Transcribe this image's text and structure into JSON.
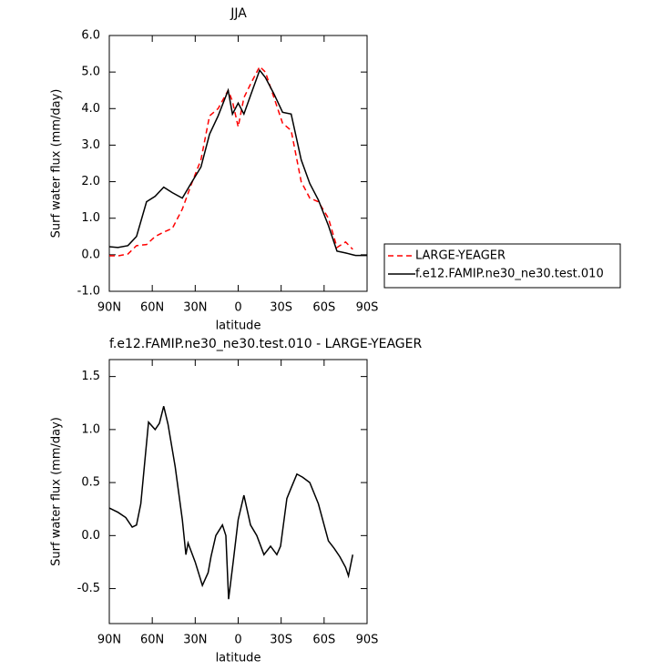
{
  "chart_data": [
    {
      "type": "line",
      "title": "JJA",
      "xlabel": "latitude",
      "ylabel": "Surf water flux (mm/day)",
      "x": [
        90,
        84,
        77,
        71,
        64,
        58,
        52,
        46,
        39,
        33,
        26,
        20,
        14,
        7,
        4,
        0,
        -4,
        -9,
        -15,
        -19,
        -25,
        -31,
        -37,
        -44,
        -50,
        -56,
        -63,
        -69,
        -75,
        -80,
        -82,
        -90
      ],
      "series": [
        {
          "name": "LARGE-YEAGER",
          "color": "#ff0000",
          "line_style": "dashed",
          "values": [
            -0.03,
            -0.03,
            0.02,
            0.25,
            0.28,
            0.5,
            0.62,
            0.72,
            1.25,
            1.9,
            2.6,
            3.8,
            4.0,
            4.5,
            4.2,
            3.5,
            4.3,
            4.7,
            5.15,
            5.0,
            4.3,
            3.6,
            3.4,
            2.0,
            1.55,
            1.45,
            1.0,
            0.2,
            0.35,
            0.15,
            null,
            null
          ]
        },
        {
          "name": "f.e12.FAMIP.ne30_ne30.test.010",
          "color": "#000000",
          "line_style": "solid",
          "values": [
            0.22,
            0.2,
            0.25,
            0.5,
            1.45,
            1.6,
            1.85,
            1.7,
            1.55,
            1.95,
            2.4,
            3.3,
            3.8,
            4.5,
            3.85,
            4.15,
            3.85,
            4.4,
            5.05,
            4.85,
            4.4,
            3.9,
            3.85,
            2.6,
            1.95,
            1.5,
            0.8,
            0.1,
            0.05,
            0.0,
            -0.02,
            -0.02
          ]
        }
      ],
      "xlim": [
        90,
        -90
      ],
      "xticks": [
        {
          "value": 90,
          "label": "90N"
        },
        {
          "value": 60,
          "label": "60N"
        },
        {
          "value": 30,
          "label": "30N"
        },
        0,
        {
          "value": -30,
          "label": "30S"
        },
        {
          "value": -60,
          "label": "60S"
        },
        {
          "value": -90,
          "label": "90S"
        }
      ],
      "ylim": [
        -1,
        6
      ],
      "yticks": [
        {
          "value": -1,
          "label": "-1.0"
        },
        {
          "value": 0,
          "label": "0.0"
        },
        {
          "value": 1,
          "label": "1.0"
        },
        {
          "value": 2,
          "label": "2.0"
        },
        {
          "value": 3,
          "label": "3.0"
        },
        {
          "value": 4,
          "label": "4.0"
        },
        {
          "value": 5,
          "label": "5.0"
        },
        {
          "value": 6,
          "label": "6.0"
        }
      ],
      "legend": "right"
    },
    {
      "type": "line",
      "title": "f.e12.FAMIP.ne30_ne30.test.010 - LARGE-YEAGER",
      "xlabel": "latitude",
      "ylabel": "Surf water flux (mm/day)",
      "x": [
        90,
        84,
        78.5,
        74,
        71,
        68,
        64.5,
        62.6,
        58,
        55,
        52,
        49,
        44,
        39,
        36.5,
        35,
        30,
        25,
        21,
        19,
        15.6,
        11,
        8.6,
        6.7,
        3.5,
        0,
        -4,
        -8.6,
        -13,
        -18,
        -22.6,
        -27,
        -29.6,
        -34,
        -37,
        -41,
        -45,
        -50,
        -56,
        -63,
        -67,
        -71,
        -75,
        -77,
        -80
      ],
      "values": [
        0.26,
        0.22,
        0.17,
        0.08,
        0.1,
        0.3,
        0.8,
        1.07,
        1.0,
        1.06,
        1.22,
        1.05,
        0.65,
        0.15,
        -0.18,
        -0.07,
        -0.25,
        -0.47,
        -0.35,
        -0.2,
        0.0,
        0.1,
        0.0,
        -0.6,
        -0.25,
        0.15,
        0.38,
        0.1,
        0.0,
        -0.18,
        -0.1,
        -0.18,
        -0.1,
        0.35,
        0.45,
        0.58,
        0.55,
        0.5,
        0.3,
        -0.05,
        -0.12,
        -0.2,
        -0.3,
        -0.38,
        -0.18
      ],
      "color": "#000000",
      "line_style": "solid",
      "xlim": [
        90,
        -90
      ],
      "xticks": [
        {
          "value": 90,
          "label": "90N"
        },
        {
          "value": 60,
          "label": "60N"
        },
        {
          "value": 30,
          "label": "30N"
        },
        0,
        {
          "value": -30,
          "label": "30S"
        },
        {
          "value": -60,
          "label": "60S"
        },
        {
          "value": -90,
          "label": "90S"
        }
      ],
      "ylim": [
        -0.83,
        1.66
      ],
      "yticks": [
        -0.5,
        {
          "value": 0,
          "label": "0.0"
        },
        0.5,
        {
          "value": 1,
          "label": "1.0"
        },
        1.5
      ]
    }
  ]
}
